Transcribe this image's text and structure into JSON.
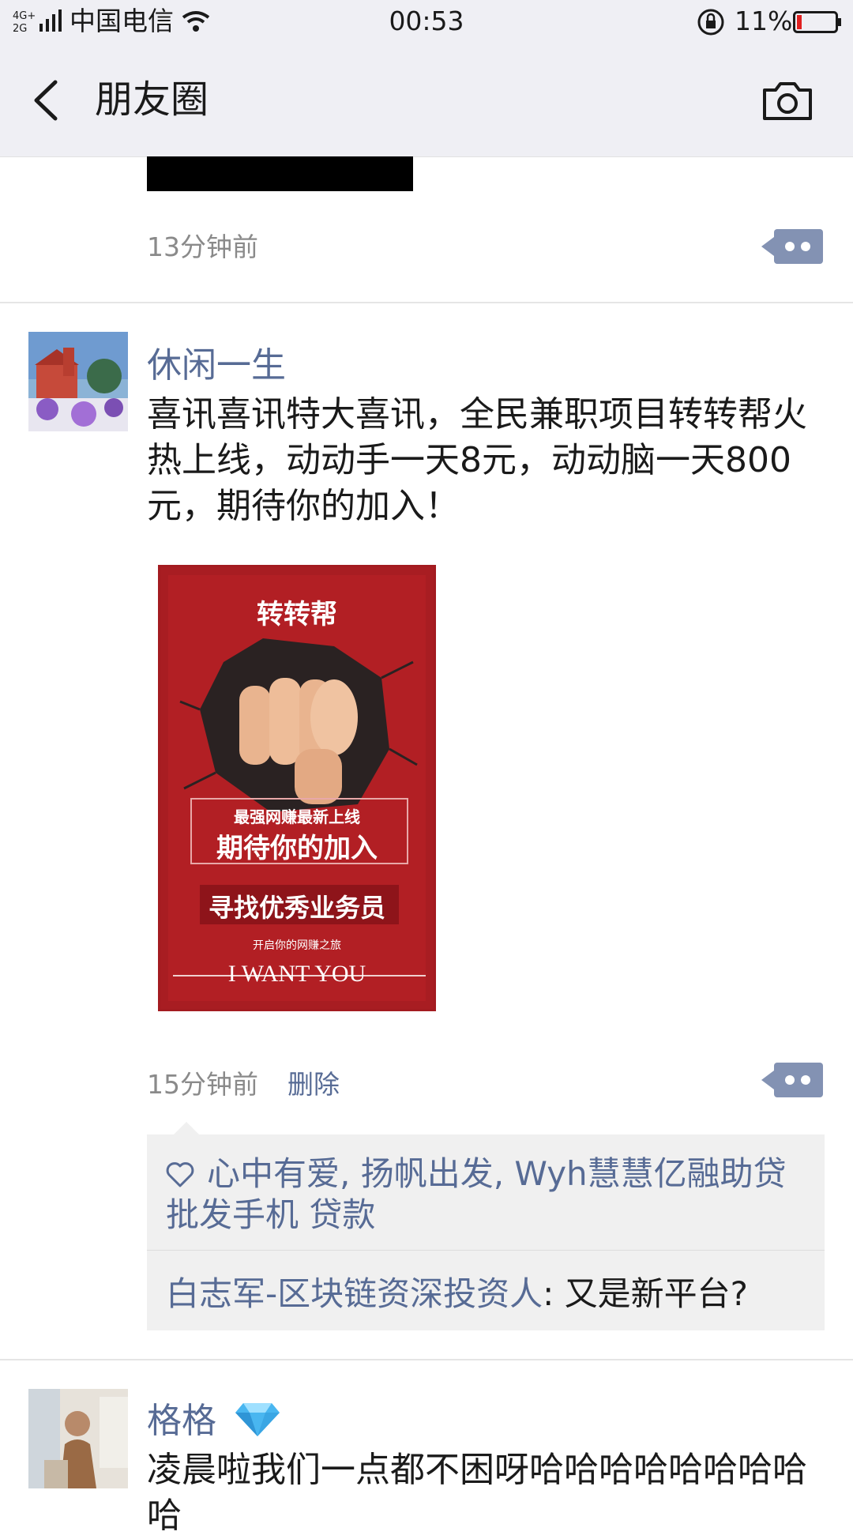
{
  "status_bar": {
    "network": "4G⁺ 2G",
    "carrier": "中国电信",
    "time": "00:53",
    "battery": "11%"
  },
  "nav": {
    "title": "朋友圈",
    "back_icon": "chevron-left-icon",
    "camera_icon": "camera-icon"
  },
  "posts": [
    {
      "time": "13分钟前"
    },
    {
      "name": "休闲一生",
      "content": "喜讯喜讯特大喜讯，全民兼职项目转转帮火热上线，动动手一天8元，动动脑一天800元，期待你的加入！",
      "poster": {
        "title": "转转帮",
        "line1": "最强网赚最新上线",
        "line2": "期待你的加入",
        "line3": "寻找优秀业务员",
        "line4": "开启你的网赚之旅",
        "line5": "I WANT YOU"
      },
      "time": "15分钟前",
      "delete_label": "删除",
      "likes": "心中有爱, 扬帆出发, Wyh慧慧亿融助贷 批发手机 贷款",
      "comment": {
        "author": "白志军-区块链资深投资人",
        "text": ": 又是新平台?"
      }
    },
    {
      "name": "格格",
      "badge_icon": "diamond-icon",
      "content": "凌晨啦我们一点都不困呀哈哈哈哈哈哈哈哈哈"
    }
  ],
  "colors": {
    "link": "#576b95",
    "bar_bg": "#efeff4",
    "poster_red": "#b21f24"
  }
}
